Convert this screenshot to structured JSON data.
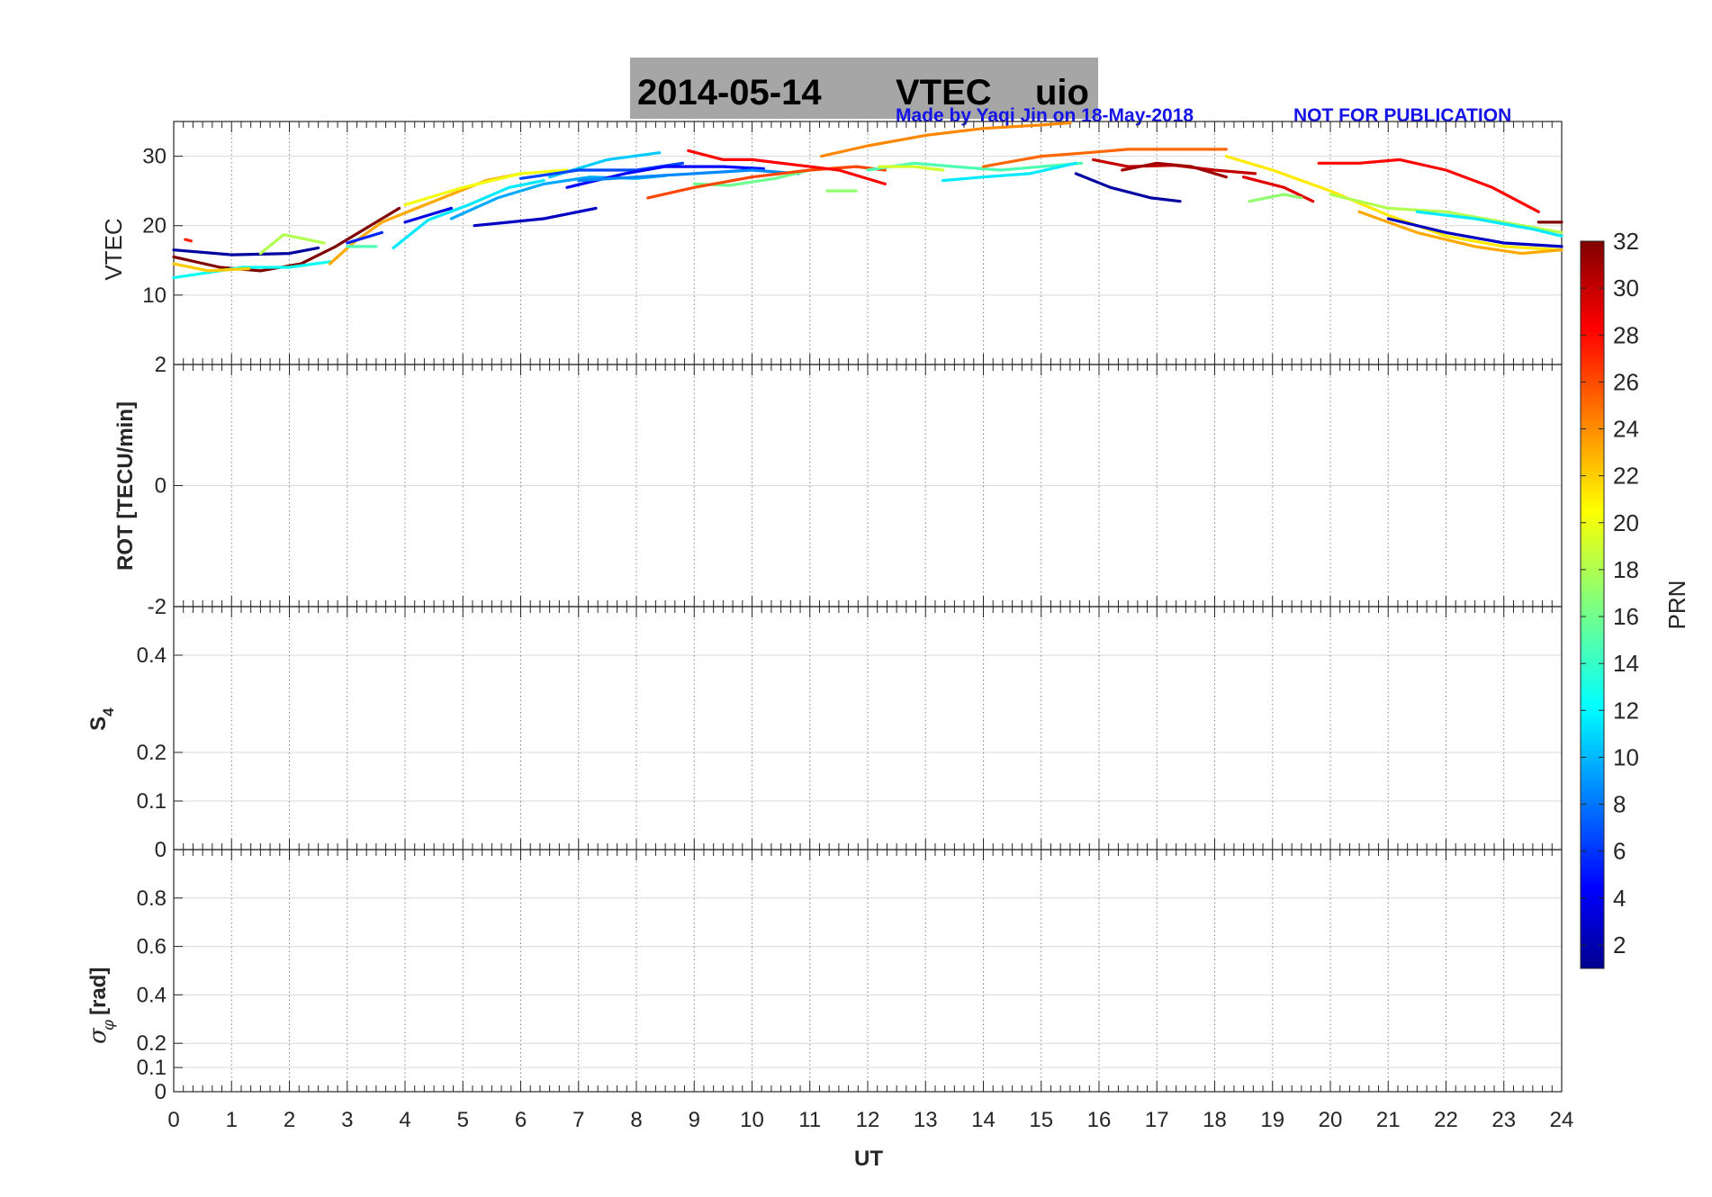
{
  "title": {
    "date": "2014-05-14",
    "quantity": "VTEC",
    "station": "uio",
    "credit": "Made by Yaqi Jin on 18-May-2018",
    "notice": "NOT FOR PUBLICATION"
  },
  "chart_data": {
    "type": "line",
    "x_label": "UT",
    "x_range": [
      0,
      24
    ],
    "x_ticks": [
      "0",
      "1",
      "2",
      "3",
      "4",
      "5",
      "6",
      "7",
      "8",
      "9",
      "10",
      "11",
      "12",
      "13",
      "14",
      "15",
      "16",
      "17",
      "18",
      "19",
      "20",
      "21",
      "22",
      "23",
      "24"
    ],
    "colorbar": {
      "label": "PRN",
      "range": [
        1,
        32
      ],
      "ticks": [
        "32",
        "30",
        "28",
        "26",
        "24",
        "22",
        "20",
        "18",
        "16",
        "14",
        "12",
        "10",
        "8",
        "6",
        "4",
        "2"
      ],
      "colormap": "jet"
    },
    "panels": [
      {
        "id": "vtec",
        "ylabel": "VTEC",
        "ylim": [
          0,
          35
        ],
        "yticks": [
          10,
          20,
          30
        ],
        "ytick_labels": [
          "10",
          "20",
          "30"
        ],
        "series": [
          {
            "prn": 2,
            "points": [
              [
                0,
                16.5
              ],
              [
                1,
                15.8
              ],
              [
                2,
                16.0
              ],
              [
                2.5,
                16.8
              ]
            ]
          },
          {
            "prn": 32,
            "points": [
              [
                0,
                15.5
              ],
              [
                0.8,
                14.0
              ],
              [
                1.5,
                13.5
              ],
              [
                2.2,
                14.5
              ],
              [
                2.8,
                17.0
              ],
              [
                3.3,
                19.5
              ],
              [
                3.9,
                22.5
              ]
            ]
          },
          {
            "prn": 13,
            "points": [
              [
                0,
                12.5
              ],
              [
                1.2,
                14.0
              ],
              [
                2.0,
                14.0
              ],
              [
                2.7,
                14.8
              ]
            ]
          },
          {
            "prn": 18,
            "points": [
              [
                1.5,
                16.0
              ],
              [
                1.9,
                18.7
              ],
              [
                2.6,
                17.5
              ]
            ]
          },
          {
            "prn": 22,
            "points": [
              [
                0,
                14.5
              ],
              [
                0.6,
                13.5
              ],
              [
                1.3,
                13.8
              ]
            ]
          },
          {
            "prn": 27,
            "points": [
              [
                0.2,
                18.0
              ],
              [
                0.3,
                17.8
              ]
            ]
          },
          {
            "prn": 23,
            "points": [
              [
                2.7,
                14.5
              ],
              [
                3.1,
                17.5
              ],
              [
                3.6,
                20.5
              ],
              [
                4.2,
                22.5
              ],
              [
                4.8,
                24.5
              ],
              [
                5.4,
                26.5
              ],
              [
                6.0,
                27.5
              ]
            ]
          },
          {
            "prn": 12,
            "points": [
              [
                3.8,
                16.8
              ],
              [
                4.4,
                20.8
              ],
              [
                5.1,
                23.0
              ],
              [
                5.8,
                25.5
              ],
              [
                6.4,
                26.5
              ]
            ]
          },
          {
            "prn": 20,
            "points": [
              [
                4.0,
                23.0
              ],
              [
                5.0,
                25.5
              ],
              [
                6.0,
                27.5
              ],
              [
                6.8,
                28.0
              ]
            ]
          },
          {
            "prn": 6,
            "points": [
              [
                3.0,
                17.5
              ],
              [
                3.6,
                19.0
              ]
            ]
          },
          {
            "prn": 15,
            "points": [
              [
                3.0,
                17.0
              ],
              [
                3.5,
                17.0
              ]
            ]
          },
          {
            "prn": 3,
            "points": [
              [
                5.2,
                20.0
              ],
              [
                5.8,
                20.5
              ],
              [
                6.4,
                21.0
              ],
              [
                7.3,
                22.5
              ]
            ]
          },
          {
            "prn": 4,
            "points": [
              [
                4.0,
                20.5
              ],
              [
                4.8,
                22.5
              ]
            ]
          },
          {
            "prn": 10,
            "points": [
              [
                4.8,
                21.0
              ],
              [
                5.6,
                24.0
              ],
              [
                6.4,
                26.0
              ],
              [
                7.2,
                27.0
              ],
              [
                8.0,
                26.8
              ],
              [
                8.5,
                27.2
              ]
            ]
          },
          {
            "prn": 11,
            "points": [
              [
                6.5,
                27.0
              ],
              [
                7.5,
                29.5
              ],
              [
                8.4,
                30.5
              ]
            ]
          },
          {
            "prn": 7,
            "points": [
              [
                6.0,
                26.8
              ],
              [
                7.0,
                28.0
              ],
              [
                8.0,
                28.0
              ],
              [
                8.8,
                29.0
              ]
            ]
          },
          {
            "prn": 5,
            "points": [
              [
                6.8,
                25.5
              ],
              [
                7.8,
                27.5
              ],
              [
                8.5,
                28.5
              ],
              [
                9.5,
                28.5
              ],
              [
                10.2,
                28.2
              ]
            ]
          },
          {
            "prn": 9,
            "points": [
              [
                7.0,
                26.5
              ],
              [
                8.0,
                27.0
              ],
              [
                9.0,
                27.5
              ],
              [
                10.0,
                28.0
              ],
              [
                10.8,
                27.5
              ]
            ]
          },
          {
            "prn": 16,
            "points": [
              [
                9.0,
                26.0
              ],
              [
                9.6,
                25.8
              ],
              [
                10.4,
                26.8
              ],
              [
                11.0,
                28.0
              ]
            ]
          },
          {
            "prn": 26,
            "points": [
              [
                8.2,
                24.0
              ],
              [
                9.0,
                25.5
              ],
              [
                10.0,
                27.0
              ],
              [
                11.0,
                28.0
              ],
              [
                11.8,
                28.5
              ],
              [
                12.3,
                28.0
              ]
            ]
          },
          {
            "prn": 28,
            "points": [
              [
                8.9,
                30.8
              ],
              [
                9.5,
                29.5
              ],
              [
                10.0,
                29.5
              ],
              [
                10.7,
                28.8
              ],
              [
                11.5,
                28.0
              ],
              [
                12.3,
                26.0
              ]
            ]
          },
          {
            "prn": 17,
            "points": [
              [
                11.3,
                25.0
              ],
              [
                11.8,
                25.0
              ]
            ]
          },
          {
            "prn": 24,
            "points": [
              [
                11.2,
                30.0
              ],
              [
                12.0,
                31.5
              ],
              [
                13.0,
                33.0
              ],
              [
                14.0,
                34.0
              ],
              [
                15.0,
                34.5
              ],
              [
                15.5,
                34.8
              ]
            ]
          },
          {
            "prn": 15,
            "points": [
              [
                12.0,
                28.0
              ],
              [
                12.8,
                29.0
              ],
              [
                13.5,
                28.5
              ],
              [
                14.3,
                28.0
              ],
              [
                15.0,
                28.5
              ],
              [
                15.7,
                29.0
              ]
            ]
          },
          {
            "prn": 12,
            "points": [
              [
                13.3,
                26.5
              ],
              [
                14.0,
                27.0
              ],
              [
                14.8,
                27.5
              ],
              [
                15.6,
                29.0
              ]
            ]
          },
          {
            "prn": 19,
            "points": [
              [
                12.2,
                28.5
              ],
              [
                12.8,
                28.5
              ],
              [
                13.3,
                28.0
              ]
            ]
          },
          {
            "prn": 25,
            "points": [
              [
                14.0,
                28.5
              ],
              [
                15.0,
                30.0
              ],
              [
                15.8,
                30.5
              ],
              [
                16.5,
                31.0
              ],
              [
                17.5,
                31.0
              ],
              [
                18.2,
                31.0
              ]
            ]
          },
          {
            "prn": 2,
            "points": [
              [
                15.6,
                27.5
              ],
              [
                16.2,
                25.5
              ],
              [
                16.9,
                24.0
              ],
              [
                17.4,
                23.5
              ]
            ]
          },
          {
            "prn": 30,
            "points": [
              [
                15.9,
                29.5
              ],
              [
                16.5,
                28.5
              ],
              [
                17.3,
                28.7
              ],
              [
                18.0,
                28.0
              ],
              [
                18.7,
                27.5
              ]
            ]
          },
          {
            "prn": 31,
            "points": [
              [
                16.4,
                28.0
              ],
              [
                17.0,
                29.0
              ],
              [
                17.6,
                28.5
              ],
              [
                18.2,
                27.0
              ]
            ]
          },
          {
            "prn": 29,
            "points": [
              [
                18.5,
                27.0
              ],
              [
                19.2,
                25.5
              ],
              [
                19.7,
                23.5
              ]
            ]
          },
          {
            "prn": 17,
            "points": [
              [
                18.6,
                23.5
              ],
              [
                19.2,
                24.5
              ],
              [
                19.5,
                24.0
              ]
            ]
          },
          {
            "prn": 21,
            "points": [
              [
                18.2,
                30.0
              ],
              [
                19.0,
                28.0
              ],
              [
                20.0,
                25.0
              ],
              [
                21.0,
                21.5
              ],
              [
                22.0,
                18.5
              ],
              [
                23.0,
                17.0
              ],
              [
                24.0,
                16.5
              ]
            ]
          },
          {
            "prn": 28,
            "points": [
              [
                19.8,
                29.0
              ],
              [
                20.5,
                29.0
              ],
              [
                21.2,
                29.5
              ],
              [
                22.0,
                28.0
              ],
              [
                22.8,
                25.5
              ],
              [
                23.6,
                22.0
              ]
            ]
          },
          {
            "prn": 23,
            "points": [
              [
                20.5,
                22.0
              ],
              [
                21.5,
                19.0
              ],
              [
                22.5,
                17.0
              ],
              [
                23.3,
                16.0
              ],
              [
                24.0,
                16.5
              ]
            ]
          },
          {
            "prn": 18,
            "points": [
              [
                20.0,
                24.5
              ],
              [
                21.0,
                22.5
              ],
              [
                22.0,
                22.0
              ],
              [
                23.0,
                20.5
              ],
              [
                24.0,
                19.0
              ]
            ]
          },
          {
            "prn": 3,
            "points": [
              [
                21.0,
                21.0
              ],
              [
                22.0,
                19.0
              ],
              [
                23.0,
                17.5
              ],
              [
                24.0,
                17.0
              ]
            ]
          },
          {
            "prn": 12,
            "points": [
              [
                21.5,
                22.0
              ],
              [
                22.5,
                21.0
              ],
              [
                23.5,
                19.5
              ],
              [
                24.0,
                18.5
              ]
            ]
          },
          {
            "prn": 32,
            "points": [
              [
                23.6,
                20.5
              ],
              [
                24.0,
                20.5
              ]
            ]
          }
        ]
      },
      {
        "id": "rot",
        "ylabel": "ROT [TECU/min]",
        "ylim": [
          -2,
          2
        ],
        "yticks": [
          -2,
          0,
          2
        ],
        "ytick_labels": [
          "-2",
          "0",
          "2"
        ]
      },
      {
        "id": "s4",
        "ylabel": "S4",
        "ylim": [
          0,
          0.5
        ],
        "yticks": [
          0,
          0.1,
          0.2,
          0.4
        ],
        "ytick_labels": [
          "0",
          "0.1",
          "0.2",
          "0.4"
        ]
      },
      {
        "id": "sigphi",
        "ylabel": "σφ [rad]",
        "ylim": [
          0,
          1
        ],
        "yticks": [
          0,
          0.1,
          0.2,
          0.4,
          0.6,
          0.8
        ],
        "ytick_labels": [
          "0",
          "0.1",
          "0.2",
          "0.4",
          "0.6",
          "0.8"
        ]
      }
    ]
  }
}
